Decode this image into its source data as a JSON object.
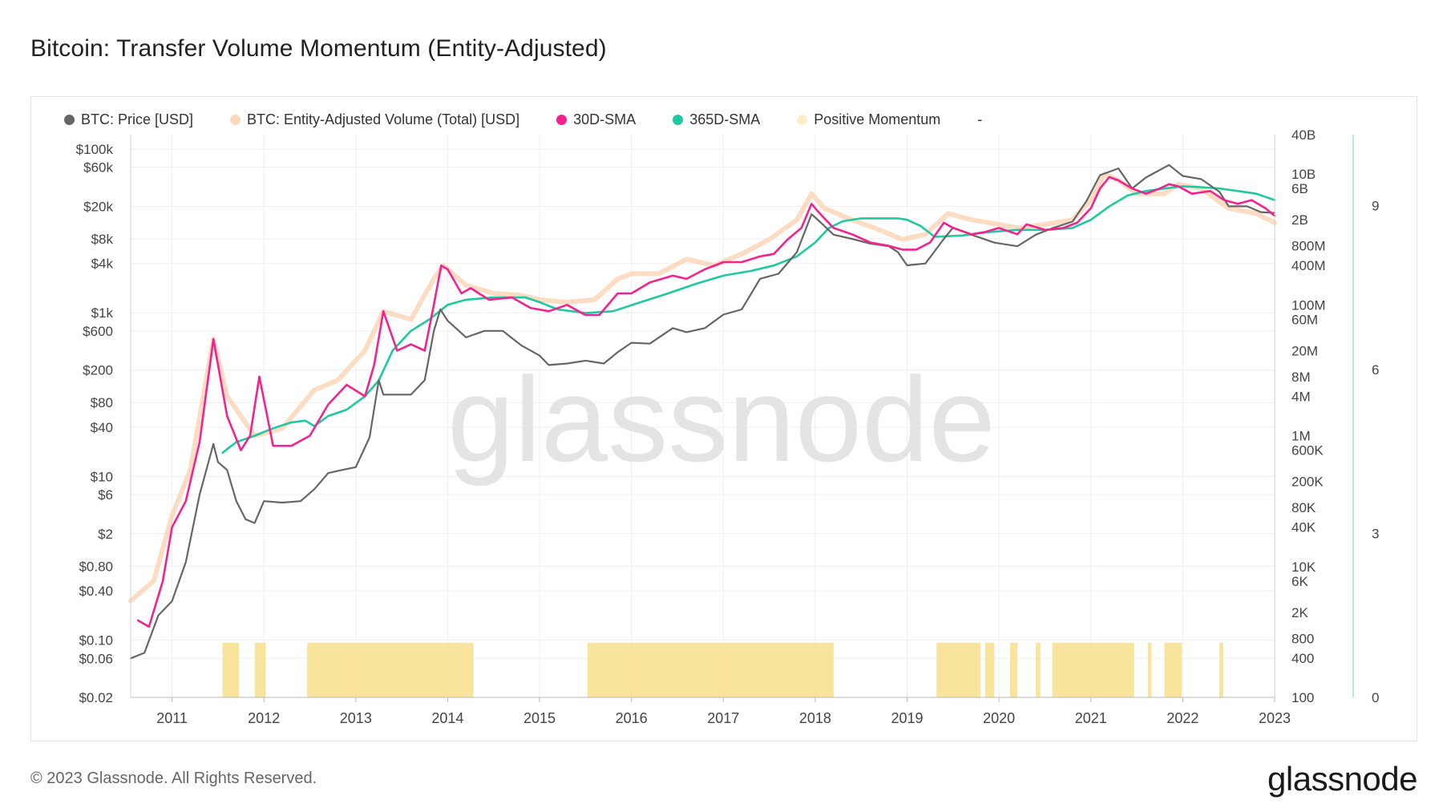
{
  "title": "Bitcoin: Transfer Volume Momentum (Entity-Adjusted)",
  "legend": [
    {
      "label": "BTC: Price [USD]",
      "color": "#666666"
    },
    {
      "label": "BTC: Entity-Adjusted Volume (Total) [USD]",
      "color": "#fbd8bd"
    },
    {
      "label": "30D-SMA",
      "color": "#f2238e"
    },
    {
      "label": "365D-SMA",
      "color": "#1ec9a0"
    },
    {
      "label": "Positive Momentum",
      "color": "#fdf0c8"
    },
    {
      "label": "-",
      "color": ""
    }
  ],
  "watermark": "glassnode",
  "footer": "© 2023 Glassnode. All Rights Reserved.",
  "brand": "glassnode",
  "chart_data": {
    "type": "line",
    "x_ticks": [
      "2011",
      "2012",
      "2013",
      "2014",
      "2015",
      "2016",
      "2017",
      "2018",
      "2019",
      "2020",
      "2021",
      "2022",
      "2023"
    ],
    "x_range": [
      2010.55,
      2023.0
    ],
    "y_left": {
      "scale": "log",
      "range": [
        0.02,
        150000
      ],
      "ticks": [
        [
          "$100k",
          100000
        ],
        [
          "$60k",
          60000
        ],
        [
          "$20k",
          20000
        ],
        [
          "$8k",
          8000
        ],
        [
          "$4k",
          4000
        ],
        [
          "$1k",
          1000
        ],
        [
          "$600",
          600
        ],
        [
          "$200",
          200
        ],
        [
          "$80",
          80
        ],
        [
          "$40",
          40
        ],
        [
          "$10",
          10
        ],
        [
          "$6",
          6
        ],
        [
          "$2",
          2
        ],
        [
          "$0.80",
          0.8
        ],
        [
          "$0.40",
          0.4
        ],
        [
          "$0.10",
          0.1
        ],
        [
          "$0.06",
          0.06
        ],
        [
          "$0.02",
          0.02
        ]
      ]
    },
    "y_right": {
      "scale": "log",
      "range": [
        100,
        40000000000
      ],
      "ticks": [
        [
          "40B",
          40000000000
        ],
        [
          "10B",
          10000000000
        ],
        [
          "6B",
          6000000000
        ],
        [
          "2B",
          2000000000
        ],
        [
          "800M",
          800000000
        ],
        [
          "400M",
          400000000
        ],
        [
          "100M",
          100000000
        ],
        [
          "60M",
          60000000
        ],
        [
          "20M",
          20000000
        ],
        [
          "8M",
          8000000
        ],
        [
          "4M",
          4000000
        ],
        [
          "1M",
          1000000
        ],
        [
          "600K",
          600000
        ],
        [
          "200K",
          200000
        ],
        [
          "80K",
          80000
        ],
        [
          "40K",
          40000
        ],
        [
          "10K",
          10000
        ],
        [
          "6K",
          6000
        ],
        [
          "2K",
          2000
        ],
        [
          "800",
          800
        ],
        [
          "400",
          400
        ],
        [
          "100",
          100
        ]
      ]
    },
    "y_right2": {
      "scale": "linear",
      "range": [
        0,
        10.3
      ],
      "ticks": [
        9,
        6,
        3,
        0
      ]
    },
    "series": [
      {
        "name": "BTC: Price [USD]",
        "axis": "left",
        "x": [
          2010.55,
          2010.7,
          2010.85,
          2011.0,
          2011.15,
          2011.3,
          2011.45,
          2011.5,
          2011.6,
          2011.7,
          2011.8,
          2011.9,
          2012.0,
          2012.2,
          2012.4,
          2012.55,
          2012.7,
          2012.85,
          2013.0,
          2013.15,
          2013.25,
          2013.3,
          2013.45,
          2013.6,
          2013.75,
          2013.85,
          2013.92,
          2014.0,
          2014.2,
          2014.4,
          2014.6,
          2014.8,
          2015.0,
          2015.1,
          2015.3,
          2015.5,
          2015.7,
          2015.85,
          2016.0,
          2016.2,
          2016.45,
          2016.6,
          2016.8,
          2017.0,
          2017.2,
          2017.4,
          2017.6,
          2017.8,
          2017.96,
          2018.05,
          2018.2,
          2018.4,
          2018.6,
          2018.8,
          2018.9,
          2019.0,
          2019.2,
          2019.4,
          2019.5,
          2019.7,
          2019.95,
          2020.2,
          2020.4,
          2020.6,
          2020.8,
          2020.95,
          2021.1,
          2021.3,
          2021.45,
          2021.6,
          2021.85,
          2022.0,
          2022.2,
          2022.4,
          2022.5,
          2022.7,
          2022.85,
          2023.0
        ],
        "values": [
          0.06,
          0.07,
          0.2,
          0.3,
          0.9,
          6,
          25,
          15,
          12,
          5,
          3,
          2.7,
          5,
          4.8,
          5,
          7,
          11,
          12,
          13,
          30,
          150,
          100,
          100,
          100,
          150,
          600,
          1100,
          800,
          500,
          600,
          600,
          400,
          300,
          230,
          240,
          260,
          240,
          330,
          430,
          420,
          650,
          580,
          650,
          950,
          1100,
          2600,
          3000,
          5500,
          16000,
          13000,
          9000,
          8000,
          7000,
          6500,
          5500,
          3800,
          4000,
          8000,
          11000,
          9000,
          7200,
          6500,
          9000,
          11000,
          13000,
          23000,
          48000,
          58000,
          33000,
          45000,
          64000,
          47000,
          43000,
          30000,
          20000,
          20000,
          17000,
          16600
        ]
      },
      {
        "name": "BTC: Entity-Adjusted Volume (Total) [USD]",
        "axis": "right",
        "x": [
          2010.55,
          2010.8,
          2011.0,
          2011.2,
          2011.45,
          2011.6,
          2011.9,
          2012.2,
          2012.55,
          2012.8,
          2013.1,
          2013.3,
          2013.6,
          2013.85,
          2013.95,
          2014.2,
          2014.5,
          2014.8,
          2015.0,
          2015.3,
          2015.6,
          2015.85,
          2016.0,
          2016.3,
          2016.6,
          2016.9,
          2017.2,
          2017.5,
          2017.8,
          2017.96,
          2018.1,
          2018.4,
          2018.7,
          2018.95,
          2019.2,
          2019.45,
          2019.7,
          2020.0,
          2020.2,
          2020.5,
          2020.8,
          2021.0,
          2021.15,
          2021.3,
          2021.5,
          2021.8,
          2021.95,
          2022.2,
          2022.5,
          2022.8,
          2023.0
        ],
        "values": [
          3000,
          6000,
          60000,
          300000,
          30000000,
          4000000,
          1000000,
          1300000,
          5000000,
          7000000,
          20000000,
          80000000,
          60000000,
          250000000,
          400000000,
          200000000,
          150000000,
          140000000,
          120000000,
          110000000,
          120000000,
          250000000,
          300000000,
          300000000,
          500000000,
          400000000,
          600000000,
          1000000000,
          2000000000,
          5000000000,
          3000000000,
          2000000000,
          1400000000,
          1000000000,
          1200000000,
          2500000000,
          2000000000,
          1700000000,
          1500000000,
          1700000000,
          2000000000,
          4000000000,
          10000000000,
          8000000000,
          5000000000,
          5000000000,
          7000000000,
          6000000000,
          3000000000,
          2500000000,
          1800000000
        ]
      },
      {
        "name": "30D-SMA",
        "axis": "right",
        "x": [
          2010.63,
          2010.75,
          2010.9,
          2011.0,
          2011.15,
          2011.3,
          2011.45,
          2011.6,
          2011.75,
          2011.85,
          2011.95,
          2012.1,
          2012.3,
          2012.5,
          2012.7,
          2012.9,
          2013.1,
          2013.2,
          2013.3,
          2013.45,
          2013.6,
          2013.75,
          2013.85,
          2013.93,
          2014.0,
          2014.15,
          2014.25,
          2014.45,
          2014.7,
          2014.9,
          2015.1,
          2015.3,
          2015.5,
          2015.65,
          2015.85,
          2016.0,
          2016.2,
          2016.45,
          2016.6,
          2016.8,
          2017.0,
          2017.2,
          2017.4,
          2017.55,
          2017.7,
          2017.85,
          2017.96,
          2018.05,
          2018.2,
          2018.4,
          2018.6,
          2018.8,
          2018.95,
          2019.1,
          2019.25,
          2019.4,
          2019.5,
          2019.7,
          2019.85,
          2020.0,
          2020.2,
          2020.3,
          2020.5,
          2020.7,
          2020.85,
          2021.0,
          2021.1,
          2021.2,
          2021.3,
          2021.45,
          2021.6,
          2021.75,
          2021.85,
          2021.95,
          2022.1,
          2022.3,
          2022.45,
          2022.6,
          2022.75,
          2022.9,
          2023.0
        ],
        "values": [
          1500,
          1200,
          6000,
          40000,
          100000,
          800000,
          30000000,
          2000000,
          600000,
          1000000,
          8000000,
          700000,
          700000,
          1000000,
          3000000,
          6000000,
          4000000,
          12000000,
          80000000,
          20000000,
          25000000,
          20000000,
          100000000,
          400000000,
          350000000,
          150000000,
          180000000,
          120000000,
          130000000,
          90000000,
          80000000,
          100000000,
          70000000,
          70000000,
          150000000,
          150000000,
          220000000,
          280000000,
          250000000,
          350000000,
          450000000,
          450000000,
          550000000,
          600000000,
          1000000000,
          1500000000,
          3500000000,
          2500000000,
          1500000000,
          1200000000,
          900000000,
          800000000,
          700000000,
          700000000,
          900000000,
          1800000000,
          1500000000,
          1200000000,
          1300000000,
          1500000000,
          1200000000,
          1700000000,
          1400000000,
          1500000000,
          1800000000,
          3000000000,
          6000000000,
          9000000000,
          8000000000,
          6000000000,
          5000000000,
          6000000000,
          7000000000,
          6500000000,
          5000000000,
          5500000000,
          4000000000,
          3500000000,
          4000000000,
          3000000000,
          2300000000
        ]
      },
      {
        "name": "365D-SMA",
        "axis": "right",
        "x": [
          2011.55,
          2011.7,
          2011.9,
          2012.1,
          2012.3,
          2012.45,
          2012.55,
          2012.7,
          2012.9,
          2013.1,
          2013.25,
          2013.4,
          2013.6,
          2013.8,
          2014.0,
          2014.2,
          2014.5,
          2014.85,
          2015.0,
          2015.2,
          2015.5,
          2015.8,
          2016.1,
          2016.4,
          2016.7,
          2017.0,
          2017.3,
          2017.55,
          2017.8,
          2018.0,
          2018.15,
          2018.3,
          2018.5,
          2018.7,
          2018.9,
          2019.0,
          2019.15,
          2019.3,
          2019.6,
          2019.9,
          2020.2,
          2020.5,
          2020.8,
          2021.0,
          2021.2,
          2021.4,
          2021.6,
          2021.8,
          2022.0,
          2022.2,
          2022.4,
          2022.6,
          2022.8,
          2023.0
        ],
        "values": [
          550000,
          800000,
          1000000,
          1300000,
          1600000,
          1700000,
          1400000,
          2000000,
          2500000,
          4000000,
          7000000,
          20000000,
          40000000,
          60000000,
          100000000,
          120000000,
          130000000,
          130000000,
          110000000,
          85000000,
          75000000,
          80000000,
          110000000,
          150000000,
          210000000,
          280000000,
          330000000,
          400000000,
          550000000,
          900000000,
          1500000000,
          1900000000,
          2100000000,
          2100000000,
          2100000000,
          2000000000,
          1600000000,
          1100000000,
          1150000000,
          1300000000,
          1400000000,
          1400000000,
          1500000000,
          2000000000,
          3200000000,
          4700000000,
          5500000000,
          6000000000,
          6500000000,
          6300000000,
          6000000000,
          5500000000,
          5000000000,
          4000000000
        ]
      }
    ],
    "positive_momentum_periods": [
      [
        2011.55,
        2011.73
      ],
      [
        2011.9,
        2012.02
      ],
      [
        2012.47,
        2014.28
      ],
      [
        2015.52,
        2018.2
      ],
      [
        2019.32,
        2019.8
      ],
      [
        2019.85,
        2019.95
      ],
      [
        2020.12,
        2020.2
      ],
      [
        2020.4,
        2020.45
      ],
      [
        2020.58,
        2021.47
      ],
      [
        2021.62,
        2021.66
      ],
      [
        2021.8,
        2021.99
      ],
      [
        2022.4,
        2022.44
      ]
    ]
  }
}
